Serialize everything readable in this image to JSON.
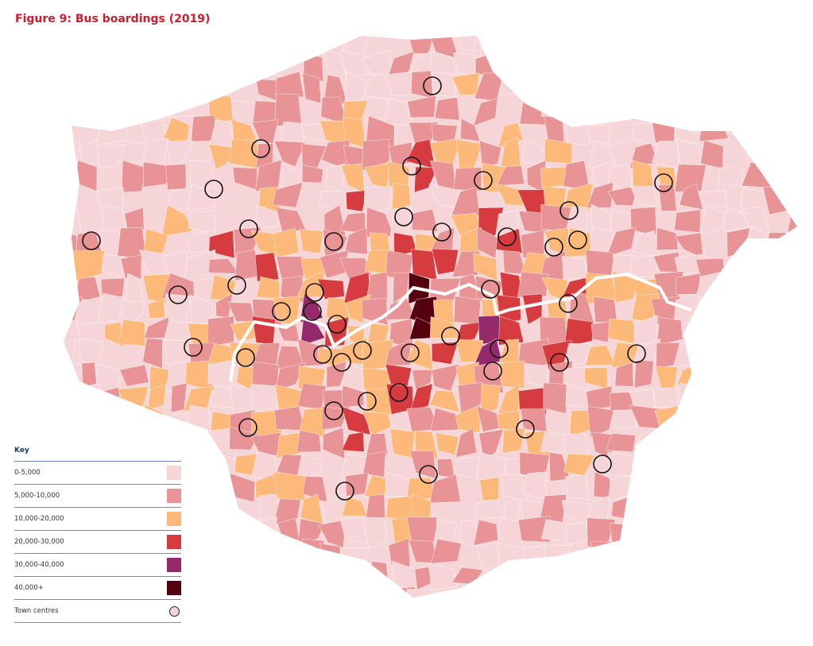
{
  "title": "Figure 9: Bus boardings (2019)",
  "key": {
    "heading": "Key",
    "items": [
      {
        "label": "0-5,000",
        "color": "#f6d5d8"
      },
      {
        "label": "5,000-10,000",
        "color": "#e89396"
      },
      {
        "label": "10,000-20,000",
        "color": "#fdb97a"
      },
      {
        "label": "20,000-30,000",
        "color": "#d63c3f"
      },
      {
        "label": "30,000-40,000",
        "color": "#952a6b"
      },
      {
        "label": "40,000+",
        "color": "#55000f"
      }
    ],
    "town_centres_label": "Town centres",
    "town_centre_fill": "#f6d5d8",
    "river_color": "#ffffff"
  }
}
